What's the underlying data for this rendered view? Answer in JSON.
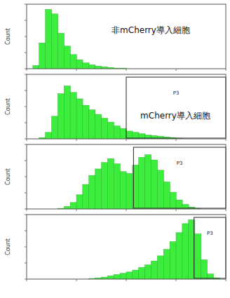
{
  "chart_data": [
    {
      "type": "histogram",
      "ylabel": "Count",
      "annotation": "非mCherry導入細胞",
      "bins": [
        10,
        13.3,
        17.8,
        23.7,
        31.6,
        42.2,
        56.2,
        75,
        100,
        133,
        178,
        237,
        316,
        422,
        562,
        750,
        1000,
        1334,
        1778,
        2371,
        3162,
        4217,
        5623,
        7499,
        10000,
        13335,
        17783,
        23714,
        31623,
        42170,
        56234,
        74989,
        100000
      ],
      "counts": [
        0,
        5,
        40,
        92,
        85,
        55,
        35,
        22,
        14,
        9,
        6,
        4,
        3,
        2,
        1,
        1,
        0,
        0,
        0,
        0,
        0,
        0,
        0,
        0,
        0,
        0,
        0,
        0,
        0,
        0,
        0,
        0
      ],
      "xlim": [
        10,
        100000
      ],
      "xticks": [
        10,
        100,
        1000,
        10000,
        100000
      ],
      "ylim": [
        0,
        100
      ],
      "yticks": [
        0,
        25,
        50,
        75,
        100
      ],
      "log": "x",
      "tick_labels": false,
      "color": "#3ded3d"
    },
    {
      "type": "histogram",
      "ylabel": "Count",
      "annotation": "mCherry導入細胞",
      "bins": [
        10,
        13.3,
        17.8,
        23.7,
        31.6,
        42.2,
        56.2,
        75,
        100,
        133,
        178,
        237,
        316,
        422,
        562,
        750,
        1000,
        1334,
        1778,
        2371,
        3162,
        4217,
        5623,
        7499,
        10000,
        13335,
        17783,
        23714,
        31623,
        42170,
        56234,
        74989,
        100000
      ],
      "counts": [
        0,
        0,
        2,
        10,
        35,
        70,
        82,
        72,
        62,
        52,
        45,
        38,
        32,
        26,
        20,
        16,
        12,
        10,
        8,
        6,
        5,
        4,
        3,
        2,
        1,
        0,
        0,
        0,
        0,
        0,
        0,
        0
      ],
      "xlim": [
        10,
        100000
      ],
      "xticks": [
        10,
        100,
        1000,
        10000,
        100000
      ],
      "ylim": [
        0,
        100
      ],
      "yticks": [
        0,
        25,
        50,
        75,
        100
      ],
      "log": "x",
      "tick_labels": false,
      "color": "#3ded3d",
      "gate": {
        "x": [
          1000,
          100000
        ],
        "label": "P3"
      }
    },
    {
      "type": "histogram",
      "ylabel": "Count",
      "bins": [
        10,
        13.3,
        17.8,
        23.7,
        31.6,
        42.2,
        56.2,
        75,
        100,
        133,
        178,
        237,
        316,
        422,
        562,
        750,
        1000,
        1334,
        1778,
        2371,
        3162,
        4217,
        5623,
        7499,
        10000,
        13335,
        17783,
        23714,
        31623,
        42170,
        56234,
        74989,
        100000
      ],
      "counts": [
        0,
        0,
        0,
        0,
        0,
        1,
        4,
        10,
        22,
        38,
        52,
        62,
        72,
        78,
        70,
        58,
        55,
        68,
        80,
        84,
        76,
        60,
        42,
        26,
        14,
        7,
        3,
        1,
        0,
        0,
        0,
        0
      ],
      "xlim": [
        10,
        100000
      ],
      "xticks": [
        10,
        100,
        1000,
        10000,
        100000
      ],
      "ylim": [
        0,
        100
      ],
      "yticks": [
        0,
        25,
        50,
        75,
        100
      ],
      "log": "x",
      "tick_labels": false,
      "color": "#3ded3d",
      "gate": {
        "x": [
          1400,
          100000
        ],
        "label": "P3"
      }
    },
    {
      "type": "histogram",
      "ylabel": "Count",
      "bins": [
        10,
        13.3,
        17.8,
        23.7,
        31.6,
        42.2,
        56.2,
        75,
        100,
        133,
        178,
        237,
        316,
        422,
        562,
        750,
        1000,
        1334,
        1778,
        2371,
        3162,
        4217,
        5623,
        7499,
        10000,
        13335,
        17783,
        23714,
        31623,
        42170,
        56234,
        74989,
        100000
      ],
      "counts": [
        0,
        0,
        0,
        0,
        0,
        0,
        0,
        0,
        0,
        0,
        1,
        2,
        3,
        5,
        7,
        9,
        11,
        14,
        18,
        22,
        28,
        36,
        46,
        58,
        72,
        86,
        92,
        70,
        30,
        8,
        2,
        0
      ],
      "xlim": [
        10,
        100000
      ],
      "xticks": [
        10,
        100,
        1000,
        10000,
        100000
      ],
      "ylim": [
        0,
        100
      ],
      "yticks": [
        0,
        25,
        50,
        75,
        100
      ],
      "log": "x",
      "tick_labels": false,
      "color": "#3ded3d",
      "gate": {
        "x": [
          23000,
          100000
        ],
        "label": "P3"
      }
    }
  ]
}
